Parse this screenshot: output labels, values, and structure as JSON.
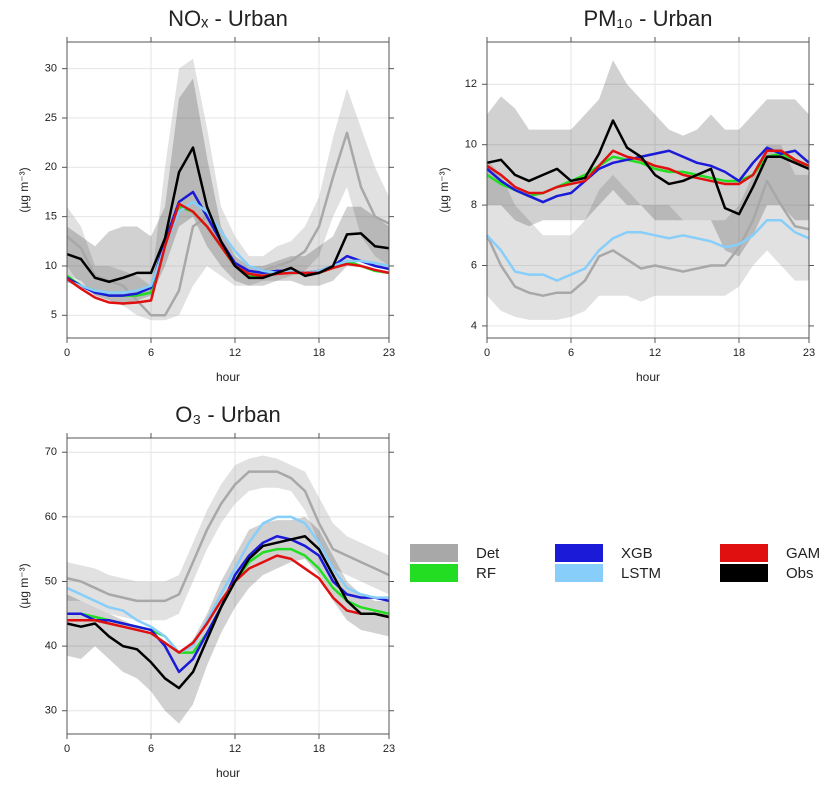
{
  "chart_data": [
    {
      "type": "line",
      "title": "NOₓ - Urban",
      "xlabel": "hour",
      "ylabel": "(µg m⁻³)",
      "x": [
        0,
        1,
        2,
        3,
        4,
        5,
        6,
        7,
        8,
        9,
        10,
        11,
        12,
        13,
        14,
        15,
        16,
        17,
        18,
        19,
        20,
        21,
        22,
        23
      ],
      "xlim": [
        0,
        23
      ],
      "xticks": [
        0,
        6,
        12,
        18,
        23
      ],
      "ylim": [
        2.7,
        32.7
      ],
      "yticks": [
        5,
        10,
        15,
        20,
        25,
        30
      ],
      "grid": true,
      "series": [
        {
          "name": "Det",
          "color": "#a8a8a8",
          "values": [
            13,
            11.8,
            9,
            8.5,
            8,
            6.5,
            5,
            5,
            7.5,
            14,
            15,
            12,
            10,
            9.3,
            9.5,
            10,
            10.5,
            11.5,
            14,
            19,
            23.5,
            18,
            15,
            14.3
          ],
          "lower": [
            10,
            8,
            7,
            6.5,
            6,
            5,
            4.5,
            4.5,
            5,
            8,
            10,
            9,
            8,
            8,
            8.5,
            8.5,
            9,
            9.5,
            11,
            15,
            18,
            13,
            11,
            10
          ],
          "upper": [
            16,
            14,
            10,
            10,
            9.5,
            9,
            8,
            20,
            30,
            31,
            24,
            16,
            13,
            11,
            11,
            12,
            12.5,
            14,
            17,
            23,
            28,
            24,
            20,
            17
          ]
        },
        {
          "name": "RF",
          "color": "#22dd22",
          "values": [
            9,
            8,
            7.5,
            7,
            7,
            7,
            7.3,
            12,
            16,
            15.5,
            14,
            12,
            10,
            9,
            9,
            9.3,
            9.3,
            9.3,
            9.3,
            9.8,
            10.5,
            10,
            9.5,
            9.3
          ]
        },
        {
          "name": "XGB",
          "color": "#1a1ad8",
          "values": [
            8.8,
            8,
            7.3,
            7,
            7,
            7.2,
            7.8,
            12.5,
            16.5,
            17.5,
            15,
            12.5,
            10.3,
            9.5,
            9.3,
            9.5,
            9.5,
            9.3,
            9.5,
            10,
            11,
            10.5,
            10,
            9.7
          ]
        },
        {
          "name": "LSTM",
          "color": "#87cefa",
          "values": [
            8.5,
            8,
            7.5,
            7.3,
            7.3,
            7.5,
            8,
            12,
            15.5,
            16.5,
            15.5,
            13.5,
            11.5,
            10,
            9.5,
            9.3,
            9.5,
            9.3,
            9.5,
            10,
            10.5,
            10.5,
            10.3,
            10
          ]
        },
        {
          "name": "GAM",
          "color": "#e01010",
          "values": [
            8.7,
            7.7,
            6.8,
            6.3,
            6.2,
            6.3,
            6.5,
            12,
            16.3,
            15.5,
            14,
            12,
            10,
            9.2,
            9,
            9.2,
            9.3,
            9.3,
            9.3,
            9.8,
            10.2,
            10,
            9.6,
            9.3
          ]
        },
        {
          "name": "Obs",
          "color": "#000000",
          "values": [
            11.2,
            10.7,
            8.8,
            8.4,
            8.8,
            9.3,
            9.3,
            12.8,
            19.5,
            22,
            16,
            12.5,
            10,
            8.8,
            8.8,
            9.3,
            9.8,
            9,
            9.3,
            10,
            13.2,
            13.3,
            12,
            11.8
          ],
          "lower": [
            9,
            8.5,
            7,
            6.5,
            6,
            6.5,
            7,
            10,
            14,
            15,
            12,
            10,
            8.5,
            8,
            8,
            8.5,
            8.5,
            8,
            8,
            8.5,
            10,
            10.5,
            10,
            9.5
          ],
          "upper": [
            14,
            13,
            12,
            13.5,
            14,
            14,
            13,
            16,
            27,
            29,
            21,
            14,
            11,
            10,
            10,
            10.5,
            11,
            11,
            12,
            13,
            16,
            16,
            15,
            14
          ]
        }
      ]
    },
    {
      "type": "line",
      "title": "PM₁₀ - Urban",
      "xlabel": "hour",
      "ylabel": "(µg m⁻³)",
      "x": [
        0,
        1,
        2,
        3,
        4,
        5,
        6,
        7,
        8,
        9,
        10,
        11,
        12,
        13,
        14,
        15,
        16,
        17,
        18,
        19,
        20,
        21,
        22,
        23
      ],
      "xlim": [
        0,
        23
      ],
      "xticks": [
        0,
        6,
        12,
        18,
        23
      ],
      "ylim": [
        3.6,
        13.4
      ],
      "yticks": [
        4,
        6,
        8,
        10,
        12
      ],
      "grid": true,
      "series": [
        {
          "name": "Det",
          "color": "#a8a8a8",
          "values": [
            7,
            6,
            5.3,
            5.1,
            5,
            5.1,
            5.1,
            5.5,
            6.3,
            6.5,
            6.2,
            5.9,
            6,
            5.9,
            5.8,
            5.9,
            6,
            6,
            6.6,
            7.5,
            8.8,
            8,
            7.3,
            7.2
          ],
          "lower": [
            5,
            4.5,
            4.3,
            4.2,
            4.2,
            4.2,
            4.3,
            4.5,
            5,
            5,
            5,
            4.8,
            5,
            5,
            5,
            5,
            5,
            5,
            5.3,
            6,
            6.5,
            6,
            5.5,
            5.5
          ],
          "upper": [
            9.5,
            9,
            8,
            7.5,
            7,
            7,
            7,
            7.5,
            8.5,
            9,
            8.5,
            8,
            8,
            8,
            7.5,
            7.5,
            7.5,
            7.5,
            8,
            9,
            10,
            10,
            9,
            9
          ]
        },
        {
          "name": "RF",
          "color": "#22dd22",
          "values": [
            9,
            8.7,
            8.5,
            8.3,
            8.4,
            8.6,
            8.8,
            9,
            9.3,
            9.6,
            9.5,
            9.4,
            9.2,
            9.1,
            9.1,
            9,
            8.9,
            8.8,
            8.8,
            9,
            9.6,
            9.7,
            9.5,
            9.3
          ]
        },
        {
          "name": "XGB",
          "color": "#1a1ad8",
          "values": [
            9.2,
            8.8,
            8.5,
            8.3,
            8.1,
            8.3,
            8.4,
            8.8,
            9.2,
            9.4,
            9.5,
            9.6,
            9.7,
            9.8,
            9.6,
            9.4,
            9.3,
            9.1,
            8.8,
            9.4,
            9.9,
            9.7,
            9.8,
            9.4
          ]
        },
        {
          "name": "LSTM",
          "color": "#87cefa",
          "values": [
            7,
            6.5,
            5.8,
            5.7,
            5.7,
            5.5,
            5.7,
            5.9,
            6.5,
            6.9,
            7.1,
            7.1,
            7,
            6.9,
            7,
            6.9,
            6.8,
            6.6,
            6.7,
            7,
            7.5,
            7.5,
            7.1,
            6.9
          ]
        },
        {
          "name": "GAM",
          "color": "#e01010",
          "values": [
            9.3,
            9,
            8.6,
            8.4,
            8.4,
            8.6,
            8.7,
            8.8,
            9.3,
            9.8,
            9.6,
            9.5,
            9.3,
            9.2,
            9,
            8.9,
            8.8,
            8.7,
            8.7,
            9,
            9.8,
            9.8,
            9.5,
            9.3
          ]
        },
        {
          "name": "Obs",
          "color": "#000000",
          "values": [
            9.4,
            9.5,
            9,
            8.8,
            9,
            9.2,
            8.8,
            8.9,
            9.7,
            10.8,
            9.9,
            9.6,
            9,
            8.7,
            8.8,
            9,
            9.2,
            7.9,
            7.7,
            8.6,
            9.6,
            9.6,
            9.4,
            9.2
          ],
          "lower": [
            8,
            8,
            7.5,
            7.3,
            7.5,
            7.5,
            7.5,
            7.5,
            8,
            8.5,
            8,
            8,
            7.5,
            7.5,
            7.5,
            7.5,
            7.5,
            6.5,
            6.3,
            7,
            8,
            8,
            7.5,
            7.5
          ],
          "upper": [
            11,
            11.6,
            11.2,
            10.5,
            10.5,
            10.5,
            10.5,
            11,
            11.5,
            12.8,
            12,
            11.5,
            11,
            10.5,
            10.3,
            10.5,
            11,
            10.5,
            10.5,
            11,
            11.5,
            11.5,
            11.5,
            11
          ]
        }
      ]
    },
    {
      "type": "line",
      "title": "O₃ - Urban",
      "xlabel": "hour",
      "ylabel": "(µg m⁻³)",
      "x": [
        0,
        1,
        2,
        3,
        4,
        5,
        6,
        7,
        8,
        9,
        10,
        11,
        12,
        13,
        14,
        15,
        16,
        17,
        18,
        19,
        20,
        21,
        22,
        23
      ],
      "xlim": [
        0,
        23
      ],
      "xticks": [
        0,
        6,
        12,
        18,
        23
      ],
      "ylim": [
        26.4,
        72.2
      ],
      "yticks": [
        30,
        40,
        50,
        60,
        70
      ],
      "grid": true,
      "series": [
        {
          "name": "Det",
          "color": "#a8a8a8",
          "values": [
            50.5,
            50,
            49,
            48,
            47.5,
            47,
            47,
            47,
            48,
            53,
            58,
            62,
            65,
            67,
            67,
            67,
            66,
            64,
            59,
            55,
            54,
            53,
            52,
            51
          ],
          "lower": [
            47,
            47,
            46,
            45,
            44.5,
            44,
            44,
            44,
            45,
            50,
            55,
            59,
            62,
            64,
            64.5,
            64.5,
            64,
            61,
            56,
            52,
            51,
            50,
            49,
            48
          ],
          "upper": [
            53,
            52.5,
            52,
            51,
            50.5,
            50,
            50,
            50,
            51,
            56,
            61,
            65,
            68,
            69,
            69.5,
            69,
            68,
            67,
            63,
            59,
            57,
            56,
            55,
            54
          ]
        },
        {
          "name": "RF",
          "color": "#22dd22",
          "values": [
            45,
            45,
            44.5,
            44,
            43.5,
            43,
            42.5,
            41.5,
            39,
            39,
            42,
            46,
            50,
            53,
            54.5,
            55,
            55,
            54,
            52,
            49,
            47,
            46,
            45.5,
            45
          ]
        },
        {
          "name": "XGB",
          "color": "#1a1ad8",
          "values": [
            45,
            45,
            44,
            44,
            43.5,
            43,
            42.5,
            40,
            36,
            38,
            42,
            46,
            51,
            54,
            56,
            57,
            56.5,
            55.5,
            54,
            50,
            48,
            47.5,
            47.5,
            47
          ]
        },
        {
          "name": "LSTM",
          "color": "#87cefa",
          "values": [
            49,
            48,
            47,
            46,
            45.5,
            44,
            43,
            41.5,
            39,
            40,
            44,
            48,
            52,
            56,
            59,
            60,
            60,
            59,
            56,
            52,
            49,
            48,
            47.5,
            47.5
          ]
        },
        {
          "name": "GAM",
          "color": "#e01010",
          "values": [
            44,
            44,
            44,
            43.5,
            43,
            42.5,
            42,
            40.5,
            39,
            40.5,
            43.5,
            47,
            50,
            52,
            53,
            54,
            53.5,
            52,
            50.5,
            47.5,
            45.5,
            45,
            45,
            44.5
          ]
        },
        {
          "name": "Obs",
          "color": "#000000",
          "values": [
            43.5,
            43,
            43.5,
            41.5,
            40,
            39.5,
            37.5,
            35,
            33.5,
            36,
            41,
            46,
            50,
            53.5,
            55.5,
            56,
            56.5,
            57,
            55,
            51,
            47,
            45,
            45,
            44.5
          ],
          "lower": [
            38.5,
            38,
            40,
            38,
            36,
            35,
            33,
            30,
            28,
            31,
            37,
            42,
            46,
            49,
            51,
            52,
            53,
            53.5,
            51,
            47,
            44,
            42.5,
            42,
            41.5
          ],
          "upper": [
            48,
            47,
            46,
            45,
            44,
            43,
            42,
            40.5,
            39,
            41,
            45,
            50,
            54,
            58,
            59,
            59.5,
            59.5,
            60,
            58,
            54,
            50,
            48,
            47,
            47
          ]
        }
      ]
    }
  ]
}
